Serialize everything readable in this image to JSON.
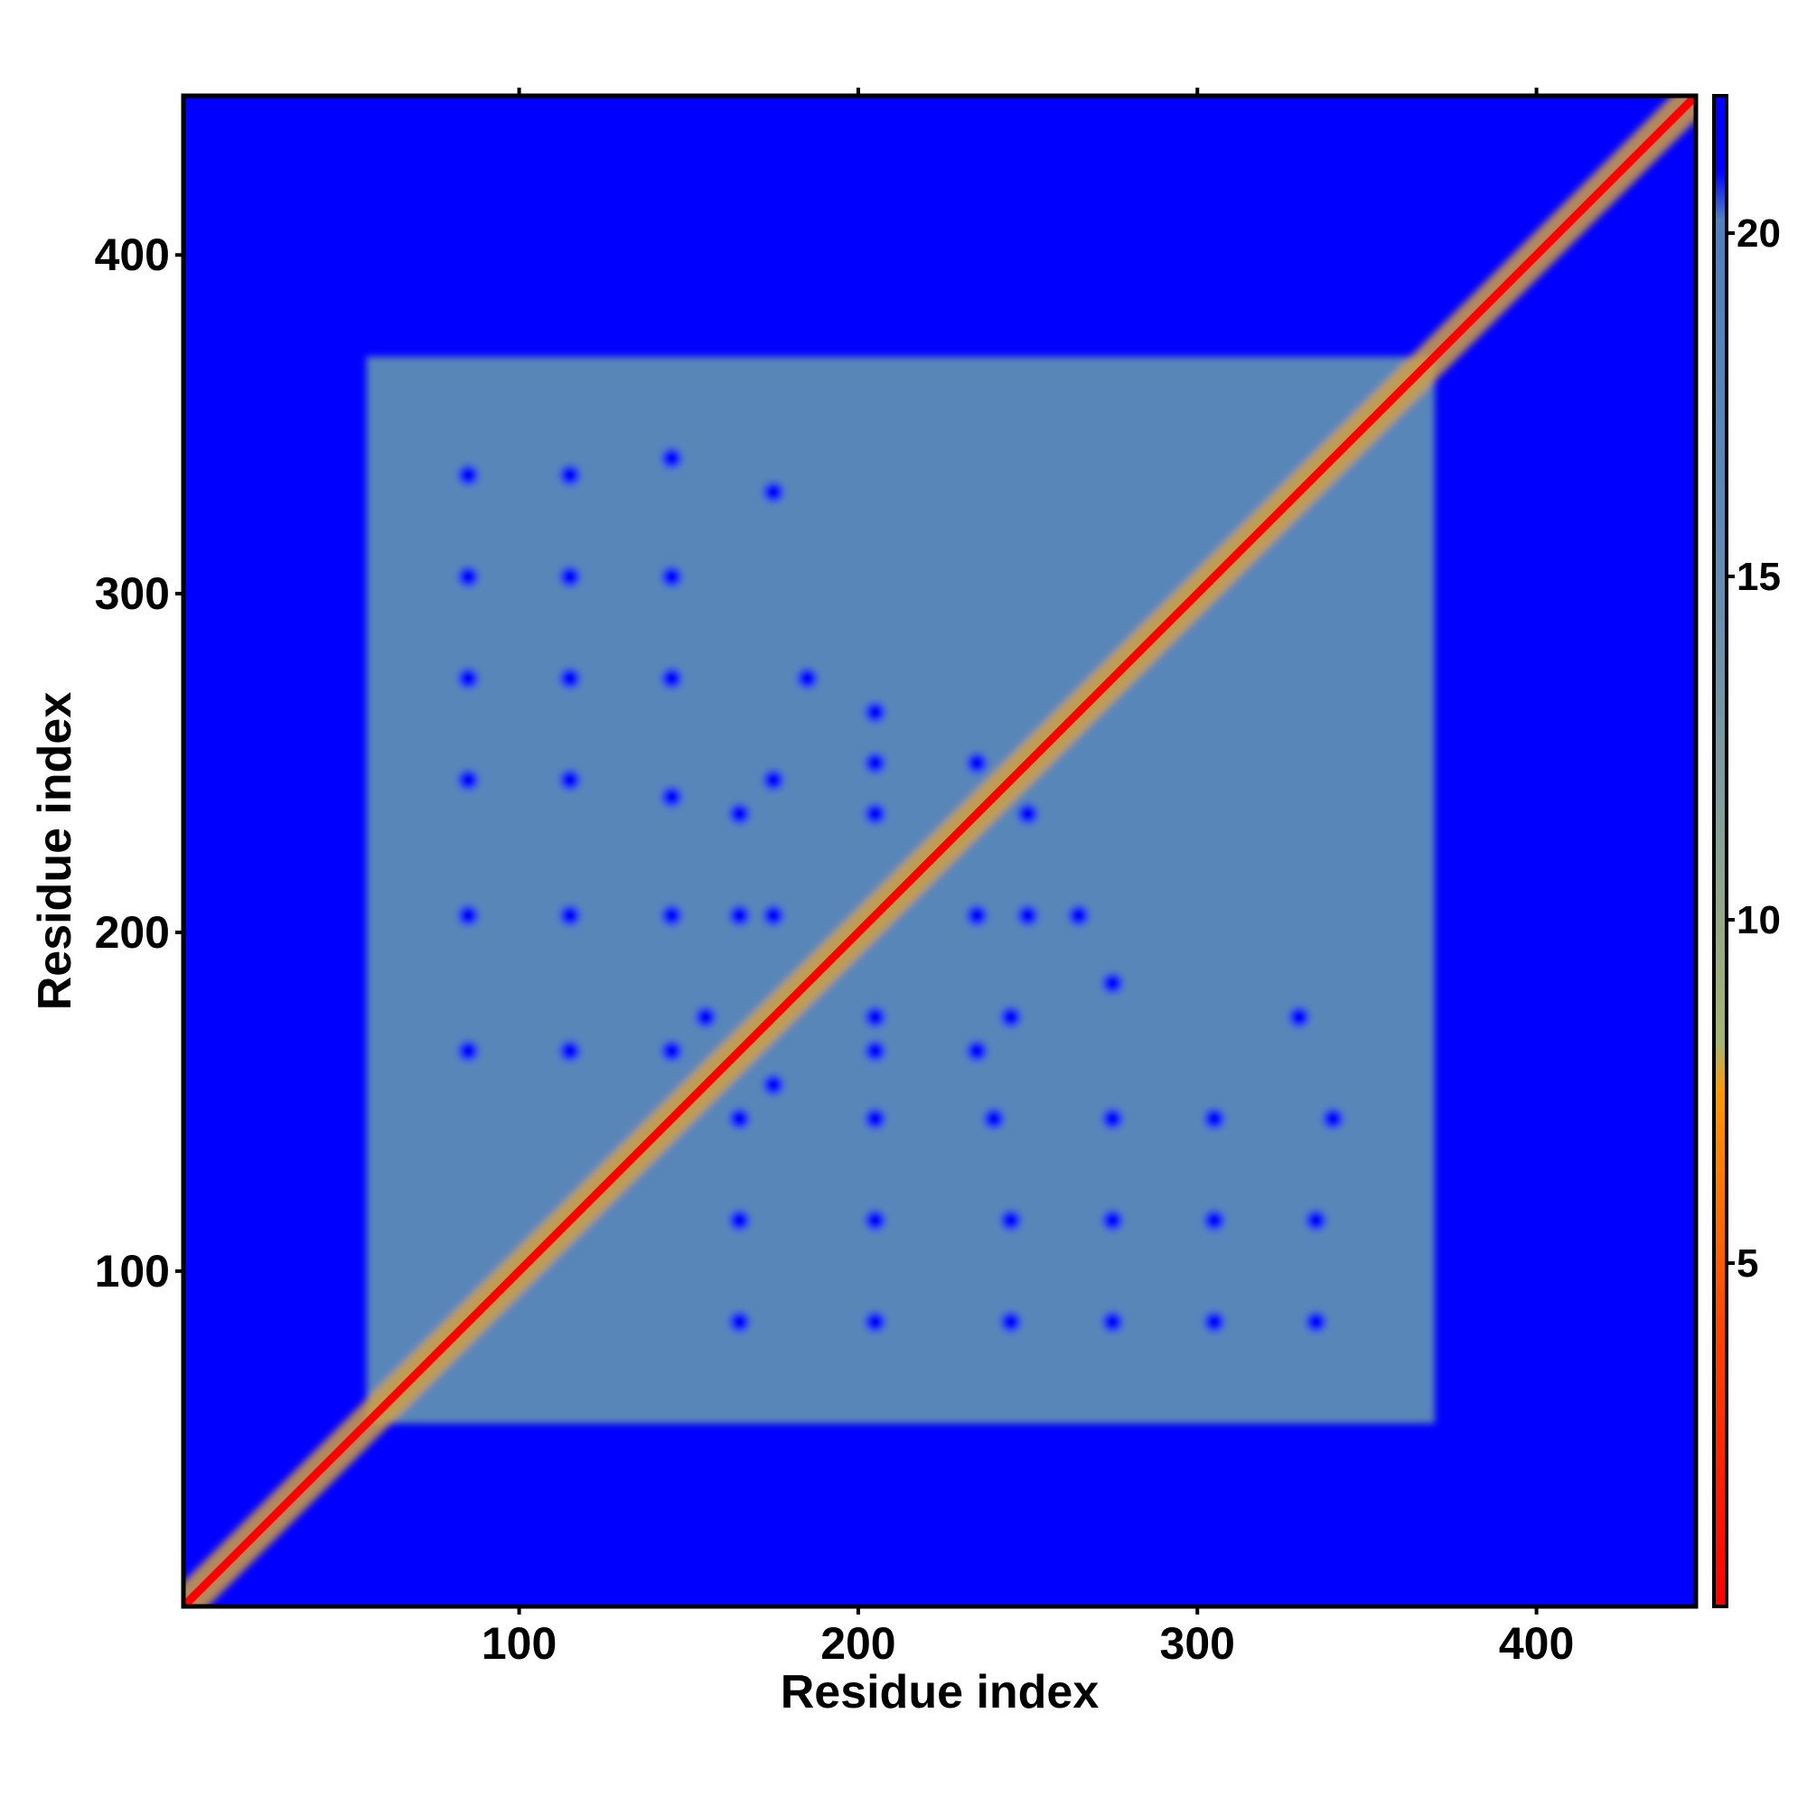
{
  "chart_data": {
    "type": "heatmap",
    "title": "",
    "xlabel": "Residue index",
    "ylabel": "Residue index",
    "xlim": [
      1,
      447
    ],
    "ylim": [
      1,
      447
    ],
    "x_ticks": [
      100,
      200,
      300,
      400
    ],
    "y_ticks": [
      100,
      200,
      300,
      400
    ],
    "colorbar": {
      "range": [
        0,
        22
      ],
      "ticks": [
        5,
        10,
        15,
        20
      ],
      "stops": [
        {
          "value": 0,
          "color": "#ff0000"
        },
        {
          "value": 4,
          "color": "#ff4400"
        },
        {
          "value": 7.5,
          "color": "#ff9900"
        },
        {
          "value": 8.2,
          "color": "#a7b56e"
        },
        {
          "value": 12,
          "color": "#7d9ca0"
        },
        {
          "value": 16,
          "color": "#5a88b8"
        },
        {
          "value": 20.2,
          "color": "#4f80c0"
        },
        {
          "value": 20.9,
          "color": "#0000ff"
        },
        {
          "value": 22,
          "color": "#0000ff"
        }
      ]
    },
    "background_value": 22,
    "background_color": "#0000ff",
    "region": {
      "min": 55,
      "max": 370,
      "value": 16,
      "color": "#5886b9"
    },
    "diagonal": {
      "value": 1,
      "color": "#ff0000"
    },
    "diagonal_band": {
      "start": 1,
      "end": 447,
      "value": 8,
      "color": "#d2a040"
    },
    "holes": {
      "value": 22,
      "color": "#0000ff",
      "centers": [
        [
          85,
          165
        ],
        [
          115,
          165
        ],
        [
          145,
          165
        ],
        [
          175,
          155
        ],
        [
          205,
          165
        ],
        [
          235,
          165
        ],
        [
          85,
          205
        ],
        [
          115,
          205
        ],
        [
          145,
          205
        ],
        [
          175,
          205
        ],
        [
          235,
          205
        ],
        [
          265,
          205
        ],
        [
          85,
          245
        ],
        [
          115,
          245
        ],
        [
          145,
          240
        ],
        [
          175,
          245
        ],
        [
          205,
          250
        ],
        [
          235,
          250
        ],
        [
          85,
          275
        ],
        [
          115,
          275
        ],
        [
          145,
          275
        ],
        [
          185,
          275
        ],
        [
          85,
          305
        ],
        [
          115,
          305
        ],
        [
          145,
          305
        ],
        [
          85,
          335
        ],
        [
          115,
          335
        ],
        [
          145,
          340
        ],
        [
          175,
          330
        ],
        [
          165,
          85
        ],
        [
          165,
          115
        ],
        [
          165,
          145
        ],
        [
          155,
          175
        ],
        [
          165,
          205
        ],
        [
          165,
          235
        ],
        [
          205,
          85
        ],
        [
          205,
          115
        ],
        [
          205,
          145
        ],
        [
          205,
          175
        ],
        [
          205,
          235
        ],
        [
          205,
          265
        ],
        [
          245,
          85
        ],
        [
          245,
          115
        ],
        [
          240,
          145
        ],
        [
          245,
          175
        ],
        [
          250,
          205
        ],
        [
          250,
          235
        ],
        [
          275,
          85
        ],
        [
          275,
          115
        ],
        [
          275,
          145
        ],
        [
          275,
          185
        ],
        [
          305,
          85
        ],
        [
          305,
          115
        ],
        [
          305,
          145
        ],
        [
          335,
          85
        ],
        [
          335,
          115
        ],
        [
          340,
          145
        ],
        [
          330,
          175
        ]
      ]
    }
  }
}
